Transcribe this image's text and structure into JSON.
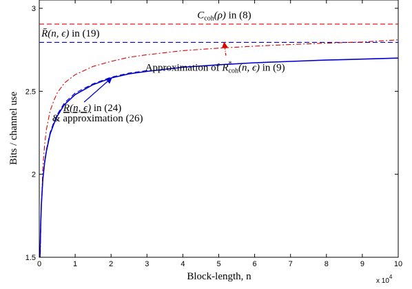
{
  "chart_data": {
    "type": "line",
    "xlabel": "Block-length, n",
    "ylabel": "Bits / channel use",
    "x_multiplier": "x 10",
    "x_multiplier_exp": "4",
    "xlim": [
      0,
      100000
    ],
    "ylim": [
      1.5,
      3.05
    ],
    "xticks": [
      0,
      10000,
      20000,
      30000,
      40000,
      50000,
      60000,
      70000,
      80000,
      90000,
      100000
    ],
    "xtick_labels": [
      "0",
      "1",
      "2",
      "3",
      "4",
      "5",
      "6",
      "7",
      "8",
      "9",
      "10"
    ],
    "yticks": [
      1.5,
      2,
      2.5,
      3
    ],
    "ytick_labels": [
      "1.5",
      "2",
      "2.5",
      "3"
    ],
    "grid": false,
    "series": [
      {
        "color": "#dd0000",
        "style": "dashed",
        "x": [
          0,
          100000
        ],
        "y": [
          2.905,
          2.905
        ]
      },
      {
        "color": "#0000cc",
        "style": "dashed",
        "x": [
          0,
          100000
        ],
        "y": [
          2.795,
          2.795
        ]
      },
      {
        "color": "#dd0000",
        "style": "dashdot",
        "x": [
          300,
          500,
          1000,
          1500,
          2000,
          3000,
          4000,
          5000,
          7000,
          10000,
          15000,
          20000,
          25000,
          30000,
          40000,
          50000,
          60000,
          70000,
          80000,
          90000,
          100000
        ],
        "y": [
          1.52,
          1.75,
          2.04,
          2.18,
          2.27,
          2.38,
          2.44,
          2.49,
          2.55,
          2.6,
          2.65,
          2.68,
          2.705,
          2.72,
          2.745,
          2.76,
          2.772,
          2.782,
          2.79,
          2.797,
          2.81
        ]
      },
      {
        "color": "#0000cc",
        "style": "solid",
        "x": [
          200,
          400,
          600,
          1000,
          1500,
          2000,
          3000,
          4000,
          5000,
          7000,
          10000,
          15000,
          20000,
          25000,
          30000,
          40000,
          50000,
          60000,
          70000,
          80000,
          90000,
          100000
        ],
        "y": [
          1.5,
          1.7,
          1.82,
          1.97,
          2.07,
          2.14,
          2.24,
          2.3,
          2.35,
          2.42,
          2.48,
          2.54,
          2.58,
          2.605,
          2.62,
          2.645,
          2.66,
          2.672,
          2.68,
          2.688,
          2.694,
          2.7
        ]
      },
      {
        "color": "#0000cc",
        "style": "dashed",
        "x": [
          300,
          600,
          1000,
          1500,
          2000,
          3000,
          4000,
          5000,
          7000,
          10000,
          15000,
          20000,
          25000,
          30000
        ],
        "y": [
          1.6,
          1.83,
          1.98,
          2.08,
          2.15,
          2.25,
          2.31,
          2.36,
          2.43,
          2.49,
          2.545,
          2.585,
          2.61,
          2.625
        ]
      }
    ],
    "annotations": [
      {
        "id": "ccoh",
        "math_main": "C",
        "math_sub": "coh",
        "math_tail": "(ρ)",
        "suffix": " in (8)",
        "x": 44000,
        "y": 2.94
      },
      {
        "id": "rbar",
        "math": "R̄(n, ϵ)",
        "suffix": " in (19)",
        "x": 600,
        "y": 2.83
      },
      {
        "id": "rstar",
        "prefix": "Approximation of ",
        "math_main": "R",
        "math_sup": "*",
        "math_sub": "coh",
        "math_tail": "(n, ϵ)",
        "suffix": " in (9)",
        "x": 29500,
        "y": 2.625,
        "arrow_from": [
          52000,
          2.715
        ],
        "arrow_to": [
          51500,
          2.795
        ],
        "arrow_color": "#dd0000"
      },
      {
        "id": "runder",
        "math": "R(n, ϵ)",
        "suffix": " in (24)",
        "line2": "& approximation (26)",
        "x": 6700,
        "y": 2.38,
        "arrow_from": [
          12500,
          2.435
        ],
        "arrow_to": [
          20200,
          2.582
        ],
        "arrow_color": "#0000cc"
      }
    ]
  }
}
